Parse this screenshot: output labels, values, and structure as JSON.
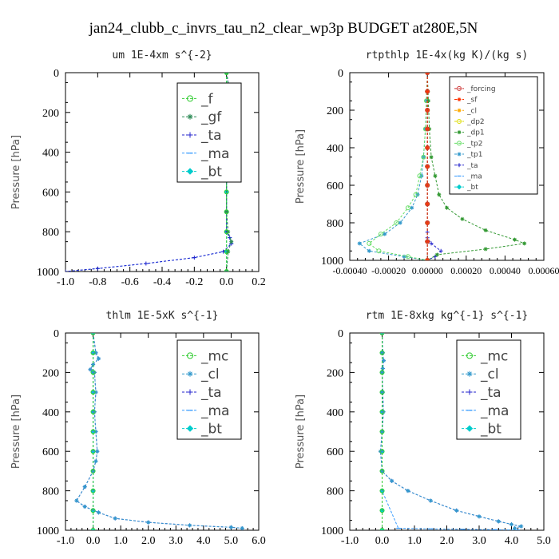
{
  "page_title": "jan24_clubb_c_invrs_tau_n2_clear_wp3p  BUDGET at280E,5N",
  "chart_data": [
    {
      "type": "line",
      "title": "um   1E-4xm s^{-2}",
      "ylabel": "Pressure [hPa]",
      "xlim": [
        -1.0,
        0.2
      ],
      "ylim": [
        1000,
        0
      ],
      "xticks": [
        -1.0,
        -0.8,
        -0.6,
        -0.4,
        -0.2,
        0.0,
        0.2
      ],
      "xtick_labels": [
        "-1.0",
        "-0.8",
        "-0.6",
        "-0.4",
        "-0.2",
        "0.0",
        "0.2"
      ],
      "yticks": [
        0,
        200,
        400,
        600,
        800,
        1000
      ],
      "legend_position": "top-right",
      "series": [
        {
          "name": "_f",
          "color": "#33cc33",
          "marker": "circle",
          "x": [
            0,
            0,
            0,
            0,
            0,
            0,
            0,
            0,
            0,
            0,
            0
          ],
          "y": [
            0,
            100,
            200,
            300,
            400,
            500,
            600,
            700,
            800,
            900,
            1000
          ]
        },
        {
          "name": "_gf",
          "color": "#2e8b57",
          "marker": "star",
          "x": [
            0,
            0.02,
            0.04,
            0.01,
            0,
            0,
            0,
            0.01,
            0.03,
            0.01,
            0
          ],
          "y": [
            0,
            100,
            140,
            180,
            300,
            500,
            700,
            800,
            850,
            900,
            1000
          ]
        },
        {
          "name": "_ta",
          "color": "#2222cc",
          "marker": "plus",
          "x": [
            0,
            0.02,
            0.04,
            0.01,
            0,
            0,
            0,
            0,
            0.02,
            0.03,
            -0.02,
            -0.2,
            -0.5,
            -0.8,
            -1.0
          ],
          "y": [
            0,
            100,
            140,
            180,
            300,
            500,
            700,
            800,
            830,
            860,
            900,
            930,
            960,
            985,
            1000
          ]
        },
        {
          "name": "_ma",
          "color": "#3399ff",
          "marker": "dash",
          "x": [
            0,
            0.02,
            0.04,
            0.01,
            0,
            0,
            0,
            0,
            0.02,
            0.03,
            -0.02,
            -0.2,
            -0.5,
            -0.8,
            -1.0
          ],
          "y": [
            0,
            100,
            140,
            180,
            300,
            500,
            700,
            800,
            830,
            860,
            900,
            930,
            960,
            985,
            1000
          ]
        },
        {
          "name": "_bt",
          "color": "#00cccc",
          "marker": "diamond",
          "x": [
            0,
            0,
            0,
            0,
            0,
            0,
            0,
            0,
            0,
            0,
            0
          ],
          "y": [
            0,
            100,
            200,
            300,
            400,
            500,
            600,
            700,
            800,
            900,
            1000
          ]
        }
      ]
    },
    {
      "type": "line",
      "title": "rtpthlp   1E-4x(kg K)/(kg s)",
      "ylabel": "Pressure [hPa]",
      "xlim": [
        -0.0004,
        0.0006
      ],
      "ylim": [
        1000,
        0
      ],
      "xticks": [
        -0.0004,
        -0.0002,
        0.0,
        0.0002,
        0.0004,
        0.0006
      ],
      "xtick_labels": [
        "-0.00040",
        "-0.00020",
        "0.00000",
        "0.00020",
        "0.00040",
        "0.00060"
      ],
      "yticks": [
        0,
        200,
        400,
        600,
        800,
        1000
      ],
      "legend_position": "top-right",
      "series": [
        {
          "name": "_forcing",
          "color": "#cc3333",
          "marker": "circle",
          "x": [
            0,
            0,
            0,
            0,
            0,
            0,
            0,
            0,
            0,
            0,
            0
          ],
          "y": [
            0,
            100,
            200,
            300,
            400,
            500,
            600,
            700,
            800,
            900,
            1000
          ]
        },
        {
          "name": "_sf",
          "color": "#ff3300",
          "marker": "star",
          "x": [
            0,
            0,
            0,
            0,
            0,
            0,
            0,
            0,
            0,
            0,
            0
          ],
          "y": [
            0,
            100,
            200,
            300,
            400,
            500,
            600,
            700,
            800,
            900,
            1000
          ]
        },
        {
          "name": "_cl",
          "color": "#ffaa00",
          "marker": "star",
          "x": [
            0,
            0,
            0,
            0,
            0,
            0,
            0,
            0,
            0,
            0,
            0
          ],
          "y": [
            0,
            100,
            200,
            300,
            400,
            500,
            600,
            700,
            800,
            900,
            1000
          ]
        },
        {
          "name": "_dp2",
          "color": "#dddd00",
          "marker": "circle",
          "x": [
            0,
            0,
            0,
            0,
            0,
            0,
            0,
            0,
            0,
            0,
            0
          ],
          "y": [
            0,
            100,
            200,
            300,
            400,
            500,
            600,
            700,
            800,
            900,
            1000
          ]
        },
        {
          "name": "_dp1",
          "color": "#339933",
          "marker": "star",
          "x": [
            0,
            5e-06,
            1e-05,
            2e-05,
            4e-05,
            6e-05,
            0.0001,
            0.00018,
            0.0003,
            0.00045,
            0.0005,
            0.0003,
            5e-05,
            0
          ],
          "y": [
            0,
            150,
            300,
            450,
            550,
            650,
            720,
            780,
            840,
            890,
            910,
            940,
            970,
            1000
          ]
        },
        {
          "name": "_tp2",
          "color": "#66dd66",
          "marker": "circle",
          "x": [
            0,
            -5e-06,
            -1e-05,
            -2e-05,
            -4e-05,
            -6e-05,
            -0.0001,
            -0.00016,
            -0.00024,
            -0.0003,
            -0.00025,
            -0.0001,
            0
          ],
          "y": [
            0,
            150,
            300,
            450,
            550,
            650,
            720,
            800,
            860,
            910,
            950,
            980,
            1000
          ]
        },
        {
          "name": "_tp1",
          "color": "#3399cc",
          "marker": "star",
          "x": [
            0,
            -5e-06,
            -1e-05,
            -2e-05,
            -3e-05,
            -5e-05,
            -8e-05,
            -0.00014,
            -0.00022,
            -0.00035,
            -0.0003,
            -0.00012,
            0
          ],
          "y": [
            0,
            150,
            300,
            450,
            550,
            650,
            720,
            800,
            860,
            910,
            950,
            980,
            1000
          ]
        },
        {
          "name": "_ta",
          "color": "#2222cc",
          "marker": "plus",
          "x": [
            0,
            0,
            0,
            0,
            0,
            0,
            0,
            0,
            2e-05,
            7e-05,
            4e-05,
            0
          ],
          "y": [
            0,
            100,
            200,
            400,
            600,
            800,
            850,
            880,
            910,
            950,
            980,
            1000
          ]
        },
        {
          "name": "_ma",
          "color": "#3399ff",
          "marker": "dash",
          "x": [
            0,
            0,
            0,
            0,
            0,
            0,
            0,
            0,
            0,
            0,
            0
          ],
          "y": [
            0,
            100,
            200,
            300,
            400,
            500,
            600,
            700,
            800,
            900,
            1000
          ]
        },
        {
          "name": "_bt",
          "color": "#00cccc",
          "marker": "diamond",
          "x": [
            0,
            0,
            0,
            0,
            0,
            0,
            0,
            0,
            0,
            0,
            0
          ],
          "y": [
            0,
            100,
            200,
            300,
            400,
            500,
            600,
            700,
            800,
            900,
            1000
          ]
        }
      ]
    },
    {
      "type": "line",
      "title": "thlm   1E-5xK s^{-1}",
      "ylabel": "Pressure [hPa]",
      "xlim": [
        -1.0,
        6.0
      ],
      "ylim": [
        1000,
        0
      ],
      "xticks": [
        -1.0,
        0.0,
        1.0,
        2.0,
        3.0,
        4.0,
        5.0,
        6.0
      ],
      "xtick_labels": [
        "-1.0",
        "0.0",
        "1.0",
        "2.0",
        "3.0",
        "4.0",
        "5.0",
        "6.0"
      ],
      "yticks": [
        0,
        200,
        400,
        600,
        800,
        1000
      ],
      "legend_position": "top-right",
      "series": [
        {
          "name": "_mc",
          "color": "#33cc33",
          "marker": "circle",
          "x": [
            0,
            0,
            0,
            0,
            0,
            0,
            0,
            0,
            0,
            0,
            0
          ],
          "y": [
            0,
            100,
            200,
            300,
            400,
            500,
            600,
            700,
            800,
            900,
            1000
          ]
        },
        {
          "name": "_cl",
          "color": "#3399cc",
          "marker": "star",
          "x": [
            0,
            0.1,
            0.2,
            0,
            -0.1,
            0.05,
            0.1,
            0.05,
            0.1,
            0.15,
            0.1,
            0,
            -0.3,
            -0.6,
            -0.3,
            0.2,
            0.8,
            2.0,
            3.5,
            5.0,
            5.4
          ],
          "y": [
            0,
            100,
            130,
            160,
            185,
            200,
            300,
            400,
            500,
            600,
            650,
            700,
            780,
            850,
            880,
            910,
            940,
            960,
            975,
            985,
            990
          ]
        },
        {
          "name": "_ta",
          "color": "#2222cc",
          "marker": "plus",
          "x": [
            0,
            0.1,
            0.2,
            0,
            -0.1,
            0.05,
            0.1,
            0.05,
            0.1,
            0.15,
            0.1,
            0,
            -0.3,
            -0.6,
            -0.3,
            0.2,
            0.8,
            2.0,
            3.5,
            5.0,
            5.4
          ],
          "y": [
            0,
            100,
            130,
            160,
            185,
            200,
            300,
            400,
            500,
            600,
            650,
            700,
            780,
            850,
            880,
            910,
            940,
            960,
            975,
            985,
            990
          ]
        },
        {
          "name": "_ma",
          "color": "#3399ff",
          "marker": "dash",
          "x": [
            0,
            0,
            0,
            0,
            0,
            0,
            0,
            0,
            0,
            0,
            0
          ],
          "y": [
            0,
            100,
            200,
            300,
            400,
            500,
            600,
            700,
            800,
            900,
            1000
          ]
        },
        {
          "name": "_bt",
          "color": "#00cccc",
          "marker": "diamond",
          "x": [
            0,
            0,
            0,
            0,
            0,
            0,
            0,
            0,
            0,
            0,
            0
          ],
          "y": [
            0,
            100,
            200,
            300,
            400,
            500,
            600,
            700,
            800,
            900,
            1000
          ]
        }
      ]
    },
    {
      "type": "line",
      "title": "rtm   1E-8xkg kg^{-1} s^{-1}",
      "ylabel": "Pressure [hPa]",
      "xlim": [
        -1.0,
        5.0
      ],
      "ylim": [
        1000,
        0
      ],
      "xticks": [
        -1.0,
        0.0,
        1.0,
        2.0,
        3.0,
        4.0,
        5.0
      ],
      "xtick_labels": [
        "-1.0",
        "0.0",
        "1.0",
        "2.0",
        "3.0",
        "4.0",
        "5.0"
      ],
      "yticks": [
        0,
        200,
        400,
        600,
        800,
        1000
      ],
      "legend_position": "top-right",
      "series": [
        {
          "name": "_mc",
          "color": "#33cc33",
          "marker": "circle",
          "x": [
            0,
            0,
            0,
            0,
            0,
            0,
            0,
            0,
            0,
            0,
            0
          ],
          "y": [
            0,
            100,
            200,
            300,
            400,
            500,
            600,
            700,
            800,
            900,
            1000
          ]
        },
        {
          "name": "_cl",
          "color": "#3399cc",
          "marker": "star",
          "x": [
            0,
            0.02,
            0.05,
            0.02,
            0,
            0.02,
            0.04,
            0,
            -0.05,
            0,
            0.3,
            0.8,
            1.5,
            2.3,
            3.0,
            3.6,
            4.0,
            4.3,
            4.1
          ],
          "y": [
            0,
            100,
            140,
            180,
            200,
            300,
            400,
            500,
            600,
            700,
            750,
            800,
            850,
            900,
            930,
            955,
            970,
            980,
            990
          ]
        },
        {
          "name": "_ta",
          "color": "#2222cc",
          "marker": "plus",
          "x": [
            0,
            0.02,
            0.05,
            0.02,
            0,
            0.02,
            0.04,
            0,
            -0.05,
            0,
            0.3,
            0.8,
            1.5,
            2.3,
            3.0,
            3.6,
            4.0,
            4.3,
            4.1
          ],
          "y": [
            0,
            100,
            140,
            180,
            200,
            300,
            400,
            500,
            600,
            700,
            750,
            800,
            850,
            900,
            930,
            955,
            970,
            980,
            990
          ]
        },
        {
          "name": "_ma",
          "color": "#3399ff",
          "marker": "dash",
          "x": [
            0,
            0,
            0,
            0,
            0,
            0,
            0,
            0,
            0,
            0.5,
            1.5,
            2.5,
            3.5,
            4.2
          ],
          "y": [
            0,
            100,
            200,
            300,
            400,
            500,
            600,
            700,
            800,
            990,
            993,
            995,
            997,
            999
          ]
        },
        {
          "name": "_bt",
          "color": "#00cccc",
          "marker": "diamond",
          "x": [
            0,
            0,
            0,
            0,
            0,
            0,
            0,
            0,
            0,
            0,
            0
          ],
          "y": [
            0,
            100,
            200,
            300,
            400,
            500,
            600,
            700,
            800,
            900,
            1000
          ]
        }
      ]
    }
  ]
}
